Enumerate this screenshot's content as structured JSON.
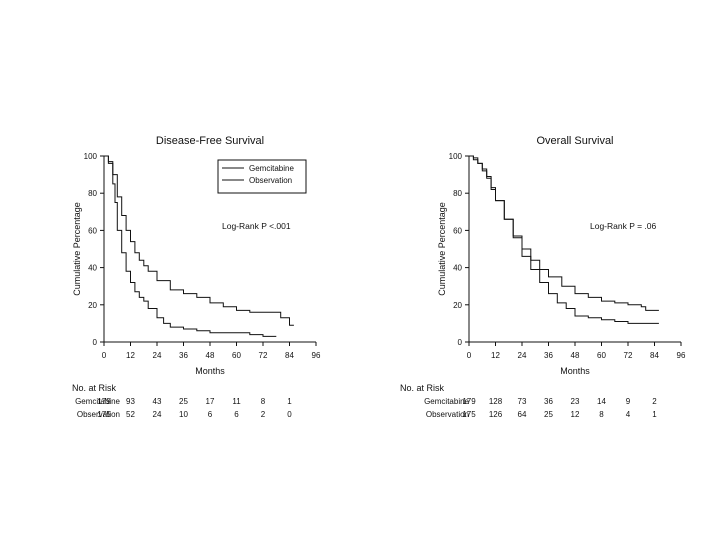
{
  "chart_data": [
    {
      "type": "line",
      "title": "Disease-Free Survival",
      "xlabel": "Months",
      "ylabel": "Cumulative Percentage",
      "xlim": [
        0,
        96
      ],
      "ylim": [
        0,
        100
      ],
      "xticks": [
        "0",
        "12",
        "24",
        "36",
        "48",
        "60",
        "72",
        "84",
        "96"
      ],
      "yticks": [
        "0",
        "20",
        "40",
        "60",
        "80",
        "100"
      ],
      "annotation": "Log-Rank P <.001",
      "legend_position": "top-right",
      "series": [
        {
          "name": "Gemcitabine",
          "x": [
            0,
            2,
            4,
            6,
            8,
            10,
            12,
            14,
            16,
            18,
            20,
            24,
            30,
            36,
            42,
            48,
            54,
            60,
            66,
            72,
            78,
            80,
            84,
            86
          ],
          "y": [
            100,
            97,
            90,
            78,
            68,
            60,
            54,
            48,
            44,
            41,
            38,
            33,
            28,
            26,
            24,
            21,
            19,
            17,
            16,
            16,
            16,
            13,
            9,
            9
          ]
        },
        {
          "name": "Observation",
          "x": [
            0,
            2,
            4,
            5,
            6,
            8,
            10,
            12,
            14,
            16,
            18,
            20,
            24,
            27,
            30,
            36,
            42,
            48,
            60,
            66,
            72,
            78
          ],
          "y": [
            100,
            96,
            85,
            75,
            60,
            48,
            38,
            32,
            27,
            24,
            22,
            18,
            13,
            10,
            8,
            7,
            6,
            5,
            5,
            4,
            3,
            3
          ]
        }
      ],
      "at_risk": {
        "header": "No. at Risk",
        "rows": [
          {
            "label": "Gemcitabine",
            "values": [
              "179",
              "93",
              "43",
              "25",
              "17",
              "11",
              "8",
              "1"
            ]
          },
          {
            "label": "Observation",
            "values": [
              "175",
              "52",
              "24",
              "10",
              "6",
              "6",
              "2",
              "0"
            ]
          }
        ]
      }
    },
    {
      "type": "line",
      "title": "Overall Survival",
      "xlabel": "Months",
      "ylabel": "Cumulative Percentage",
      "xlim": [
        0,
        96
      ],
      "ylim": [
        0,
        100
      ],
      "xticks": [
        "0",
        "12",
        "24",
        "36",
        "48",
        "60",
        "72",
        "84",
        "96"
      ],
      "yticks": [
        "0",
        "20",
        "40",
        "60",
        "80",
        "100"
      ],
      "annotation": "Log-Rank P = .06",
      "legend_position": "none",
      "series": [
        {
          "name": "Gemcitabine",
          "x": [
            0,
            2,
            4,
            6,
            8,
            10,
            12,
            16,
            20,
            24,
            28,
            32,
            36,
            42,
            48,
            54,
            60,
            66,
            72,
            78,
            80,
            86
          ],
          "y": [
            100,
            99,
            96,
            92,
            88,
            82,
            76,
            66,
            57,
            50,
            44,
            39,
            35,
            30,
            26,
            24,
            22,
            21,
            20,
            19,
            17,
            17
          ]
        },
        {
          "name": "Observation",
          "x": [
            0,
            2,
            4,
            6,
            8,
            10,
            12,
            16,
            20,
            24,
            28,
            32,
            36,
            40,
            44,
            48,
            54,
            60,
            66,
            72,
            86
          ],
          "y": [
            100,
            98,
            96,
            93,
            89,
            83,
            76,
            66,
            56,
            46,
            39,
            32,
            26,
            21,
            18,
            14,
            13,
            12,
            11,
            10,
            10
          ]
        }
      ],
      "at_risk": {
        "header": "No. at Risk",
        "rows": [
          {
            "label": "Gemcitabine",
            "values": [
              "179",
              "128",
              "73",
              "36",
              "23",
              "14",
              "9",
              "2"
            ]
          },
          {
            "label": "Observation",
            "values": [
              "175",
              "126",
              "64",
              "25",
              "12",
              "8",
              "4",
              "1"
            ]
          }
        ]
      }
    }
  ]
}
